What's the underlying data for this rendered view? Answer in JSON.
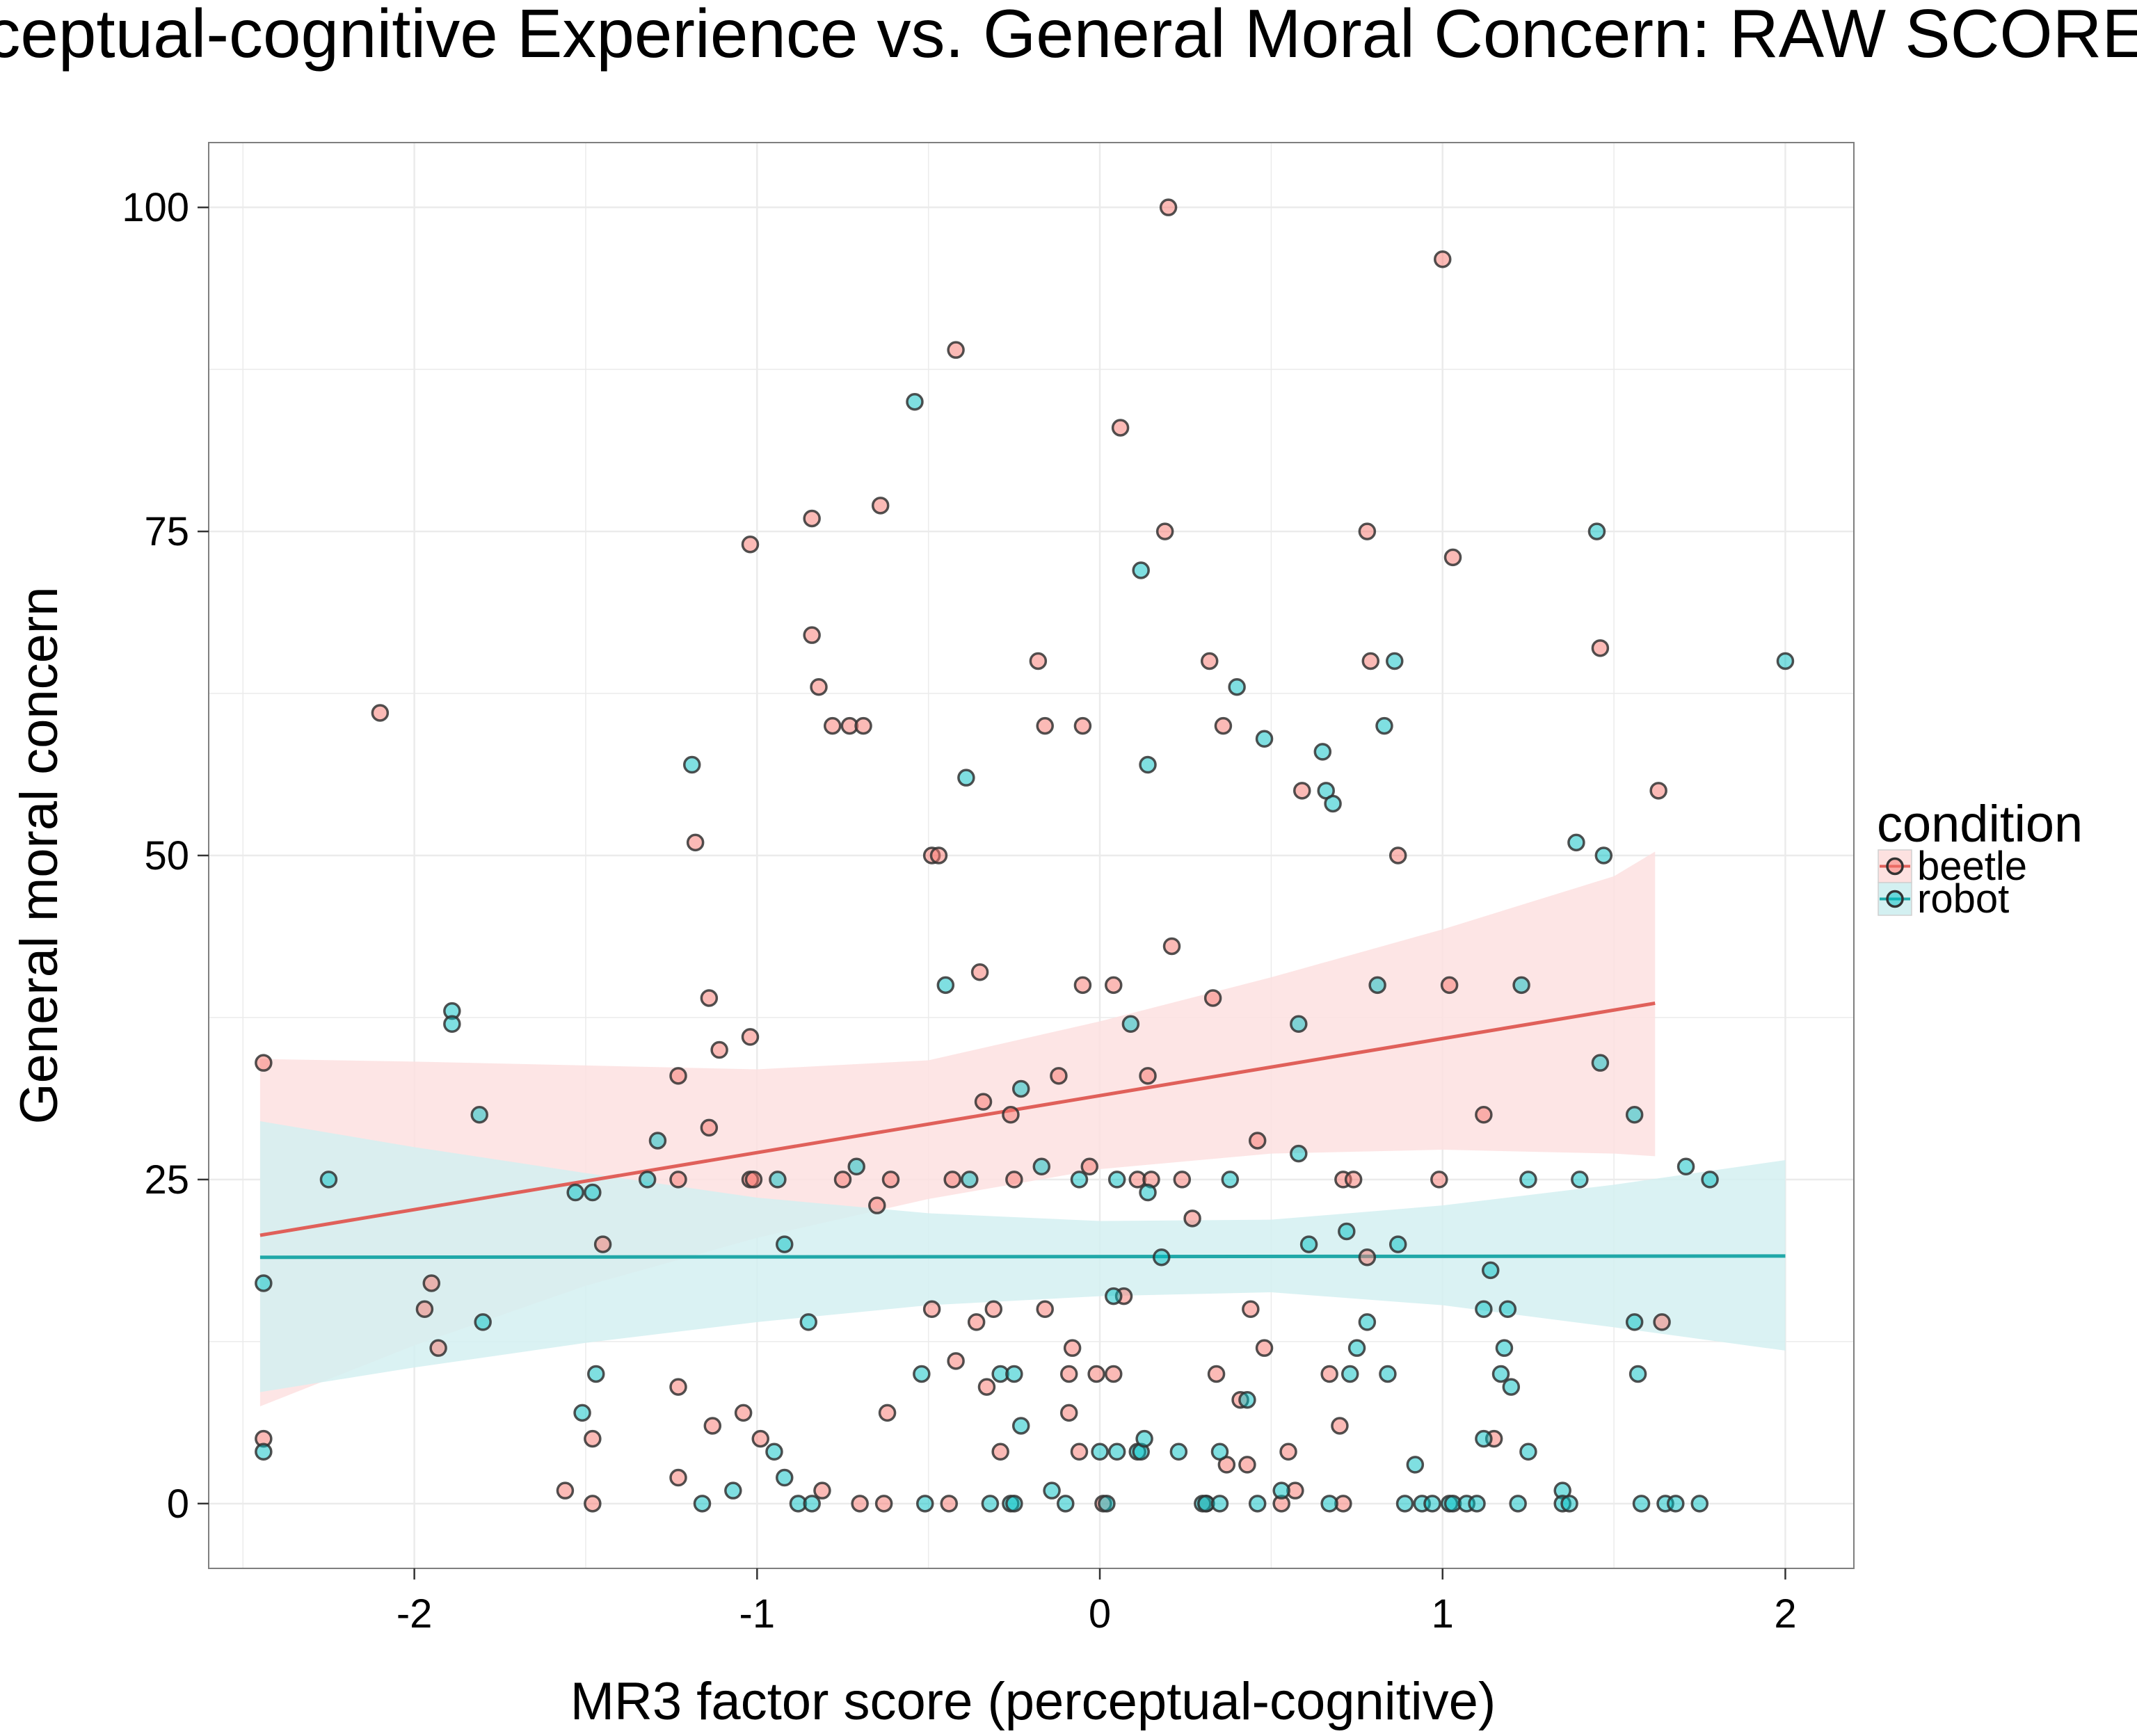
{
  "chart_data": {
    "type": "scatter",
    "title": "Perceptual-cognitive Experience vs. General Moral Concern: RAW SCORES",
    "xlabel": "MR3 factor score (perceptual-cognitive)",
    "ylabel": "General moral concern",
    "xlim": [
      -2.6,
      2.2
    ],
    "ylim": [
      -5,
      105
    ],
    "xticks": [
      -2,
      -1,
      0,
      1,
      2
    ],
    "xtick_labels": [
      "-2",
      "-1",
      "0",
      "1",
      "2"
    ],
    "yticks": [
      0,
      25,
      50,
      75,
      100
    ],
    "ytick_labels": [
      "0",
      "25",
      "50",
      "75",
      "100"
    ],
    "grid": true,
    "legend": {
      "title": "condition",
      "position": "right",
      "entries": [
        "beetle",
        "robot"
      ]
    },
    "colors": {
      "beetle": "#F8766D",
      "robot": "#00BFC4",
      "beetle_line": "#E0605A",
      "robot_line": "#20A8A8",
      "beetle_band": "#FDE1E0",
      "robot_band": "#D3F0F1",
      "overlap_band": "#E3E3E3",
      "grid": "#EBEBEB",
      "panel_border": "#7F7F7F"
    },
    "series": [
      {
        "name": "beetle",
        "fit": {
          "x": [
            -2.45,
            1.62
          ],
          "y": [
            20.7,
            38.6
          ]
        },
        "ci": {
          "x": [
            -2.45,
            -2,
            -1.5,
            -1,
            -0.5,
            0,
            0.5,
            1,
            1.5,
            1.62
          ],
          "upper": [
            34.3,
            34.1,
            33.8,
            33.5,
            34.2,
            37.2,
            40.6,
            44.3,
            48.4,
            50.3
          ],
          "lower": [
            7.5,
            12.2,
            16.8,
            20.5,
            23.5,
            25.8,
            27.0,
            27.3,
            27.0,
            26.8
          ]
        },
        "points": [
          [
            -2.44,
            34
          ],
          [
            -2.44,
            5
          ],
          [
            -2.1,
            61
          ],
          [
            -1.95,
            17
          ],
          [
            -1.97,
            15
          ],
          [
            -1.93,
            12
          ],
          [
            -1.56,
            1
          ],
          [
            -1.48,
            5
          ],
          [
            -1.48,
            0
          ],
          [
            -1.45,
            20
          ],
          [
            -1.23,
            33
          ],
          [
            -1.23,
            25
          ],
          [
            -1.23,
            9
          ],
          [
            -1.23,
            2
          ],
          [
            -1.18,
            51
          ],
          [
            -1.14,
            39
          ],
          [
            -1.14,
            29
          ],
          [
            -1.13,
            6
          ],
          [
            -1.11,
            35
          ],
          [
            -1.02,
            74
          ],
          [
            -1.02,
            36
          ],
          [
            -1.02,
            25
          ],
          [
            -1.01,
            25
          ],
          [
            -1.04,
            7
          ],
          [
            -0.99,
            5
          ],
          [
            -0.84,
            76
          ],
          [
            -0.84,
            67
          ],
          [
            -0.82,
            63
          ],
          [
            -0.78,
            60
          ],
          [
            -0.73,
            60
          ],
          [
            -0.69,
            60
          ],
          [
            -0.75,
            25
          ],
          [
            -0.81,
            1
          ],
          [
            -0.7,
            0
          ],
          [
            -0.64,
            77
          ],
          [
            -0.65,
            23
          ],
          [
            -0.61,
            25
          ],
          [
            -0.62,
            7
          ],
          [
            -0.63,
            0
          ],
          [
            -0.49,
            50
          ],
          [
            -0.47,
            50
          ],
          [
            -0.49,
            15
          ],
          [
            -0.42,
            89
          ],
          [
            -0.43,
            25
          ],
          [
            -0.42,
            11
          ],
          [
            -0.44,
            0
          ],
          [
            -0.35,
            41
          ],
          [
            -0.36,
            14
          ],
          [
            -0.33,
            9
          ],
          [
            -0.31,
            15
          ],
          [
            -0.29,
            4
          ],
          [
            -0.34,
            31
          ],
          [
            -0.26,
            30
          ],
          [
            -0.25,
            25
          ],
          [
            -0.18,
            65
          ],
          [
            -0.16,
            60
          ],
          [
            -0.16,
            15
          ],
          [
            -0.12,
            33
          ],
          [
            -0.09,
            10
          ],
          [
            -0.09,
            7
          ],
          [
            -0.08,
            12
          ],
          [
            -0.06,
            4
          ],
          [
            -0.05,
            60
          ],
          [
            -0.05,
            40
          ],
          [
            -0.03,
            26
          ],
          [
            -0.01,
            10
          ],
          [
            0.01,
            0
          ],
          [
            0.04,
            40
          ],
          [
            0.04,
            10
          ],
          [
            0.06,
            83
          ],
          [
            0.07,
            16
          ],
          [
            0.11,
            25
          ],
          [
            0.14,
            33
          ],
          [
            0.15,
            25
          ],
          [
            0.19,
            75
          ],
          [
            0.2,
            100
          ],
          [
            0.21,
            43
          ],
          [
            0.24,
            25
          ],
          [
            0.27,
            22
          ],
          [
            0.31,
            0
          ],
          [
            0.32,
            65
          ],
          [
            0.33,
            39
          ],
          [
            0.34,
            10
          ],
          [
            0.36,
            60
          ],
          [
            0.37,
            3
          ],
          [
            0.41,
            8
          ],
          [
            0.43,
            3
          ],
          [
            0.44,
            15
          ],
          [
            0.46,
            28
          ],
          [
            0.48,
            12
          ],
          [
            0.53,
            0
          ],
          [
            0.55,
            4
          ],
          [
            0.57,
            1
          ],
          [
            0.59,
            55
          ],
          [
            0.67,
            10
          ],
          [
            0.7,
            6
          ],
          [
            0.71,
            25
          ],
          [
            0.71,
            0
          ],
          [
            0.74,
            25
          ],
          [
            0.78,
            75
          ],
          [
            0.78,
            19
          ],
          [
            0.79,
            65
          ],
          [
            0.87,
            50
          ],
          [
            0.99,
            25
          ],
          [
            1.0,
            96
          ],
          [
            1.02,
            40
          ],
          [
            1.03,
            73
          ],
          [
            1.12,
            30
          ],
          [
            1.15,
            5
          ],
          [
            1.46,
            66
          ],
          [
            1.63,
            55
          ],
          [
            1.64,
            14
          ]
        ]
      },
      {
        "name": "robot",
        "fit": {
          "x": [
            -2.45,
            2.0
          ],
          "y": [
            19.0,
            19.1
          ]
        },
        "ci": {
          "x": [
            -2.45,
            -2,
            -1.5,
            -1,
            -0.5,
            0,
            0.5,
            1,
            1.5,
            2.0
          ],
          "upper": [
            29.5,
            27.5,
            25.5,
            23.6,
            22.4,
            21.8,
            21.9,
            23.0,
            24.6,
            26.5
          ],
          "lower": [
            8.6,
            10.5,
            12.4,
            14.0,
            15.3,
            16.0,
            16.3,
            15.3,
            13.6,
            11.8
          ]
        },
        "points": [
          [
            -2.44,
            17
          ],
          [
            -2.44,
            4
          ],
          [
            -2.25,
            25
          ],
          [
            -1.89,
            38
          ],
          [
            -1.89,
            37
          ],
          [
            -1.81,
            30
          ],
          [
            -1.8,
            14
          ],
          [
            -1.53,
            24
          ],
          [
            -1.48,
            24
          ],
          [
            -1.51,
            7
          ],
          [
            -1.47,
            10
          ],
          [
            -1.32,
            25
          ],
          [
            -1.29,
            28
          ],
          [
            -1.19,
            57
          ],
          [
            -1.16,
            0
          ],
          [
            -1.07,
            1
          ],
          [
            -0.95,
            4
          ],
          [
            -0.94,
            25
          ],
          [
            -0.92,
            20
          ],
          [
            -0.92,
            2
          ],
          [
            -0.88,
            0
          ],
          [
            -0.85,
            14
          ],
          [
            -0.84,
            0
          ],
          [
            -0.71,
            26
          ],
          [
            -0.54,
            85
          ],
          [
            -0.52,
            10
          ],
          [
            -0.51,
            0
          ],
          [
            -0.45,
            40
          ],
          [
            -0.39,
            56
          ],
          [
            -0.38,
            25
          ],
          [
            -0.32,
            0
          ],
          [
            -0.29,
            10
          ],
          [
            -0.26,
            0
          ],
          [
            -0.25,
            10
          ],
          [
            -0.23,
            32
          ],
          [
            -0.23,
            6
          ],
          [
            -0.25,
            0
          ],
          [
            -0.17,
            26
          ],
          [
            -0.14,
            1
          ],
          [
            -0.1,
            0
          ],
          [
            -0.06,
            25
          ],
          [
            0.0,
            4
          ],
          [
            0.02,
            0
          ],
          [
            0.04,
            16
          ],
          [
            0.05,
            25
          ],
          [
            0.05,
            4
          ],
          [
            0.09,
            37
          ],
          [
            0.11,
            4
          ],
          [
            0.12,
            72
          ],
          [
            0.12,
            4
          ],
          [
            0.13,
            5
          ],
          [
            0.14,
            57
          ],
          [
            0.14,
            24
          ],
          [
            0.18,
            19
          ],
          [
            0.23,
            4
          ],
          [
            0.3,
            0
          ],
          [
            0.31,
            0
          ],
          [
            0.35,
            4
          ],
          [
            0.35,
            0
          ],
          [
            0.38,
            25
          ],
          [
            0.4,
            63
          ],
          [
            0.43,
            8
          ],
          [
            0.46,
            0
          ],
          [
            0.48,
            59
          ],
          [
            0.53,
            1
          ],
          [
            0.58,
            37
          ],
          [
            0.58,
            27
          ],
          [
            0.61,
            20
          ],
          [
            0.65,
            58
          ],
          [
            0.66,
            55
          ],
          [
            0.68,
            54
          ],
          [
            0.67,
            0
          ],
          [
            0.72,
            21
          ],
          [
            0.73,
            10
          ],
          [
            0.75,
            12
          ],
          [
            0.78,
            14
          ],
          [
            0.81,
            40
          ],
          [
            0.83,
            60
          ],
          [
            0.84,
            10
          ],
          [
            0.86,
            65
          ],
          [
            0.87,
            20
          ],
          [
            0.89,
            0
          ],
          [
            0.92,
            3
          ],
          [
            0.94,
            0
          ],
          [
            0.97,
            0
          ],
          [
            1.02,
            0
          ],
          [
            1.03,
            0
          ],
          [
            1.07,
            0
          ],
          [
            1.1,
            0
          ],
          [
            1.12,
            5
          ],
          [
            1.12,
            15
          ],
          [
            1.14,
            18
          ],
          [
            1.17,
            10
          ],
          [
            1.18,
            12
          ],
          [
            1.19,
            15
          ],
          [
            1.2,
            9
          ],
          [
            1.22,
            0
          ],
          [
            1.23,
            40
          ],
          [
            1.25,
            25
          ],
          [
            1.25,
            4
          ],
          [
            1.35,
            1
          ],
          [
            1.35,
            0
          ],
          [
            1.37,
            0
          ],
          [
            1.39,
            51
          ],
          [
            1.4,
            25
          ],
          [
            1.45,
            75
          ],
          [
            1.46,
            34
          ],
          [
            1.47,
            50
          ],
          [
            1.56,
            30
          ],
          [
            1.56,
            14
          ],
          [
            1.57,
            10
          ],
          [
            1.58,
            0
          ],
          [
            1.65,
            0
          ],
          [
            1.68,
            0
          ],
          [
            1.71,
            26
          ],
          [
            1.75,
            0
          ],
          [
            1.78,
            25
          ],
          [
            2.0,
            65
          ]
        ]
      }
    ]
  }
}
